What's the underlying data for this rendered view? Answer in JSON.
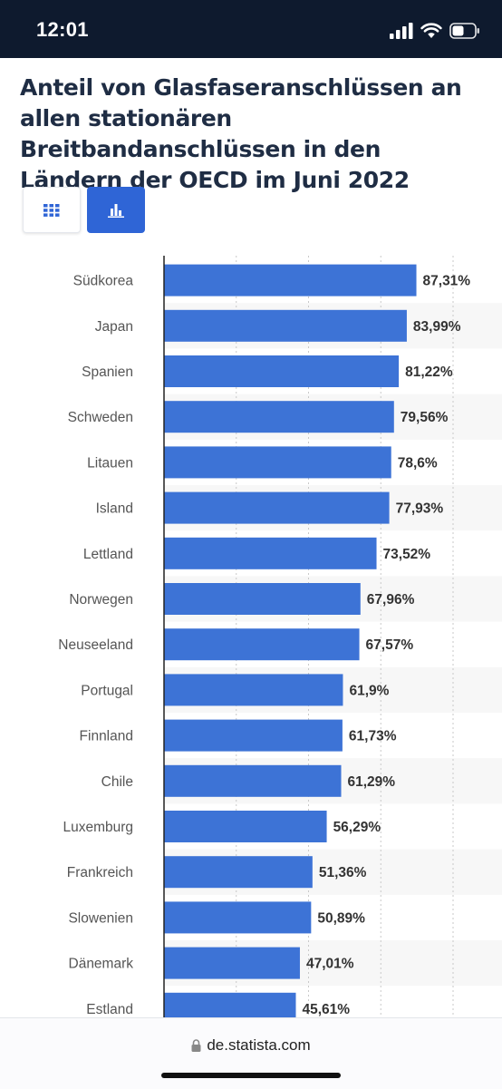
{
  "status_bar": {
    "time": "12:01"
  },
  "footer": {
    "url": "de.statista.com"
  },
  "view_toggle": {
    "table_icon": "grid-icon",
    "chart_icon": "bar-chart-icon",
    "active": "chart"
  },
  "colors": {
    "bar": "#3d73d6",
    "accent": "#2f65d6",
    "title": "#1f2d44",
    "status_bar": "#0e1a2e"
  },
  "chart_data": {
    "type": "bar",
    "orientation": "horizontal",
    "title": "Anteil von Glasfaseranschlüssen an allen stationären Breitbandanschlüssen in den Ländern der OECD im Juni 2022",
    "categories": [
      "Südkorea",
      "Japan",
      "Spanien",
      "Schweden",
      "Litauen",
      "Island",
      "Lettland",
      "Norwegen",
      "Neuseeland",
      "Portugal",
      "Finnland",
      "Chile",
      "Luxemburg",
      "Frankreich",
      "Slowenien",
      "Dänemark",
      "Estland"
    ],
    "values": [
      87.31,
      83.99,
      81.22,
      79.56,
      78.6,
      77.93,
      73.52,
      67.96,
      67.57,
      61.9,
      61.73,
      61.29,
      56.29,
      51.36,
      50.89,
      47.01,
      45.61
    ],
    "value_labels": [
      "87,31%",
      "83,99%",
      "81,22%",
      "79,56%",
      "78,6%",
      "77,93%",
      "73,52%",
      "67,96%",
      "67,57%",
      "61,9%",
      "61,73%",
      "61,29%",
      "56,29%",
      "51,36%",
      "50,89%",
      "47,01%",
      "45,61%"
    ],
    "xlim": [
      0,
      100
    ],
    "grid": true,
    "xlabel": "",
    "ylabel": ""
  }
}
